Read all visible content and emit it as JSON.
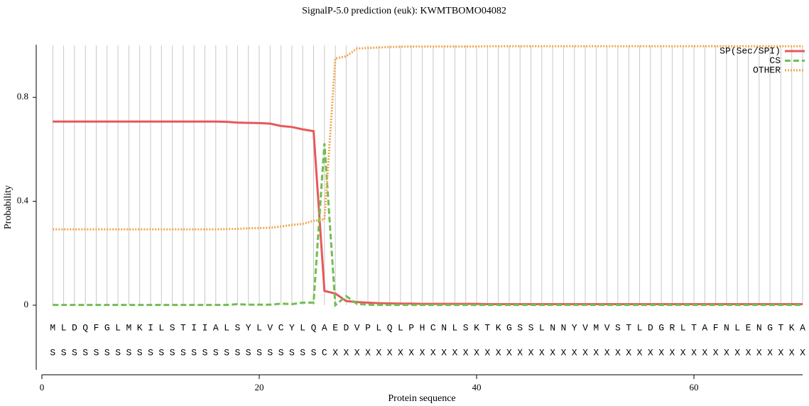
{
  "chart_data": {
    "type": "line",
    "title": "SignalP-5.0 prediction (euk):  KWMTBOMO04082",
    "x_label": "Protein sequence",
    "y_label": "Probability",
    "xlim": [
      0,
      70
    ],
    "xticks": [
      0,
      20,
      40,
      60
    ],
    "ylim": [
      -0.25,
      1.0
    ],
    "yticks": [
      0,
      0.4,
      0.8
    ],
    "grid": true,
    "legend": "top-right",
    "x": [
      1,
      2,
      3,
      4,
      5,
      6,
      7,
      8,
      9,
      10,
      11,
      12,
      13,
      14,
      15,
      16,
      17,
      18,
      19,
      20,
      21,
      22,
      23,
      24,
      25,
      26,
      27,
      28,
      29,
      30,
      31,
      32,
      33,
      34,
      35,
      36,
      37,
      38,
      39,
      40,
      41,
      42,
      43,
      44,
      45,
      46,
      47,
      48,
      49,
      50,
      51,
      52,
      53,
      54,
      55,
      56,
      57,
      58,
      59,
      60,
      61,
      62,
      63,
      64,
      65,
      66,
      67,
      68,
      69,
      70
    ],
    "sequence": [
      "M",
      "L",
      "D",
      "Q",
      "F",
      "G",
      "L",
      "M",
      "K",
      "I",
      "L",
      "S",
      "T",
      "I",
      "I",
      "A",
      "L",
      "S",
      "Y",
      "L",
      "V",
      "C",
      "Y",
      "L",
      "Q",
      "A",
      "E",
      "D",
      "V",
      "P",
      "L",
      "Q",
      "L",
      "P",
      "H",
      "C",
      "N",
      "L",
      "S",
      "K",
      "T",
      "K",
      "G",
      "S",
      "S",
      "L",
      "N",
      "N",
      "Y",
      "V",
      "M",
      "V",
      "S",
      "T",
      "L",
      "D",
      "G",
      "R",
      "L",
      "T",
      "A",
      "F",
      "N",
      "L",
      "E",
      "N",
      "G",
      "T",
      "K",
      "A"
    ],
    "labels": [
      "S",
      "S",
      "S",
      "S",
      "S",
      "S",
      "S",
      "S",
      "S",
      "S",
      "S",
      "S",
      "S",
      "S",
      "S",
      "S",
      "S",
      "S",
      "S",
      "S",
      "S",
      "S",
      "S",
      "S",
      "S",
      "C",
      "X",
      "X",
      "X",
      "X",
      "X",
      "X",
      "X",
      "X",
      "X",
      "X",
      "X",
      "X",
      "X",
      "X",
      "X",
      "X",
      "X",
      "X",
      "X",
      "X",
      "X",
      "X",
      "X",
      "X",
      "X",
      "X",
      "X",
      "X",
      "X",
      "X",
      "X",
      "X",
      "X",
      "X",
      "X",
      "X",
      "X",
      "X",
      "X",
      "X",
      "X",
      "X",
      "X",
      "X"
    ],
    "series": [
      {
        "name": "SP(Sec/SPI)",
        "color": "#e8585a",
        "line_style": "solid",
        "values": [
          0.707,
          0.707,
          0.707,
          0.707,
          0.707,
          0.707,
          0.707,
          0.707,
          0.707,
          0.707,
          0.707,
          0.707,
          0.707,
          0.707,
          0.707,
          0.707,
          0.706,
          0.703,
          0.702,
          0.701,
          0.699,
          0.69,
          0.686,
          0.677,
          0.67,
          0.055,
          0.045,
          0.016,
          0.012,
          0.01,
          0.008,
          0.007,
          0.006,
          0.006,
          0.005,
          0.005,
          0.005,
          0.005,
          0.005,
          0.005,
          0.004,
          0.004,
          0.004,
          0.004,
          0.004,
          0.004,
          0.004,
          0.004,
          0.004,
          0.004,
          0.004,
          0.004,
          0.004,
          0.004,
          0.004,
          0.004,
          0.004,
          0.004,
          0.004,
          0.004,
          0.004,
          0.004,
          0.004,
          0.004,
          0.004,
          0.004,
          0.004,
          0.004,
          0.004,
          0.004
        ]
      },
      {
        "name": "CS",
        "color": "#70be52",
        "line_style": "dashed",
        "values": [
          0.001,
          0.001,
          0.001,
          0.001,
          0.001,
          0.001,
          0.001,
          0.001,
          0.001,
          0.001,
          0.001,
          0.001,
          0.001,
          0.001,
          0.001,
          0.001,
          0.001,
          0.004,
          0.002,
          0.002,
          0.002,
          0.006,
          0.004,
          0.01,
          0.01,
          0.623,
          0.0,
          0.035,
          0.005,
          0.002,
          0.001,
          0.001,
          0.001,
          0.001,
          0.001,
          0.001,
          0.001,
          0.001,
          0.001,
          0.001,
          0.001,
          0.001,
          0.001,
          0.001,
          0.001,
          0.001,
          0.001,
          0.001,
          0.001,
          0.001,
          0.001,
          0.001,
          0.001,
          0.001,
          0.001,
          0.001,
          0.001,
          0.001,
          0.001,
          0.001,
          0.001,
          0.001,
          0.001,
          0.001,
          0.001,
          0.001,
          0.001,
          0.001,
          0.001,
          0.001
        ]
      },
      {
        "name": "OTHER",
        "color": "#f4a44c",
        "line_style": "dotted",
        "values": [
          0.292,
          0.292,
          0.292,
          0.292,
          0.292,
          0.292,
          0.292,
          0.292,
          0.292,
          0.292,
          0.292,
          0.292,
          0.292,
          0.292,
          0.292,
          0.292,
          0.293,
          0.294,
          0.296,
          0.297,
          0.298,
          0.303,
          0.309,
          0.313,
          0.325,
          0.33,
          0.95,
          0.958,
          0.988,
          0.99,
          0.992,
          0.994,
          0.995,
          0.996,
          0.996,
          0.996,
          0.996,
          0.996,
          0.996,
          0.996,
          0.997,
          0.997,
          0.997,
          0.997,
          0.997,
          0.997,
          0.997,
          0.997,
          0.997,
          0.997,
          0.997,
          0.997,
          0.997,
          0.997,
          0.997,
          0.997,
          0.997,
          0.997,
          0.997,
          0.997,
          0.997,
          0.997,
          0.997,
          0.997,
          0.997,
          0.997,
          0.997,
          0.997,
          0.997,
          0.997
        ]
      }
    ]
  }
}
